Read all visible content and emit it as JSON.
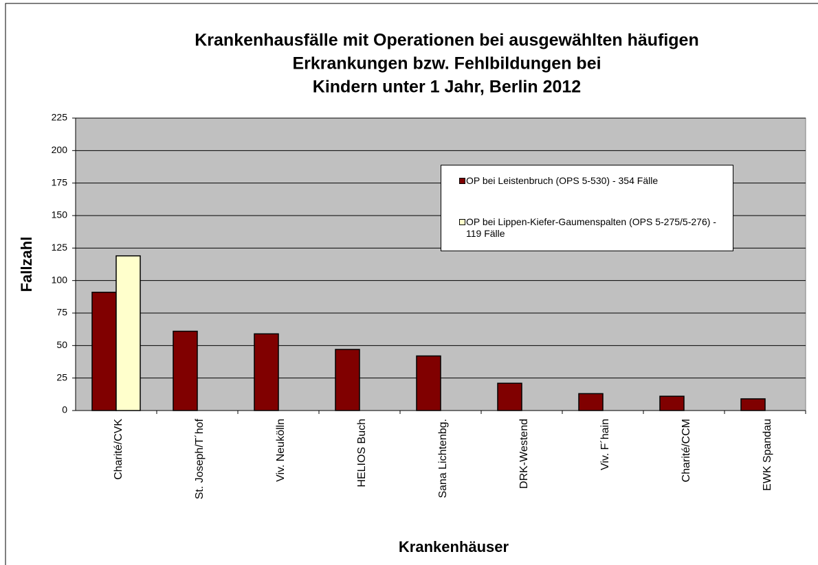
{
  "chart_data": {
    "type": "bar",
    "title": [
      "Krankenhausfälle  mit Operationen bei ausgewählten häufigen",
      "Erkrankungen bzw. Fehlbildungen  bei",
      "Kindern unter 1 Jahr, Berlin 2012"
    ],
    "x_label": "Krankenhäuser",
    "y_label": "Fallzahl",
    "categories": [
      "Charité/CVK",
      "St. Joseph/T´hof",
      "Viv. Neukölln",
      "HELIOS Buch",
      "Sana Lichtenbg.",
      "DRK-Westend",
      "Viv. F´hain",
      "Charité/CCM",
      "EWK Spandau"
    ],
    "series": [
      {
        "name": "OP bei Leistenbruch (OPS 5-530) - 354 Fälle",
        "color": "#800000",
        "values": [
          91,
          61,
          59,
          47,
          42,
          21,
          13,
          11,
          9
        ]
      },
      {
        "name": "OP bei Lippen-Kiefer-Gaumenspalten (OPS 5-275/5-276) - 119 Fälle",
        "color": "#ffffcc",
        "values": [
          119,
          null,
          null,
          null,
          null,
          null,
          null,
          null,
          null
        ]
      }
    ],
    "ylim": [
      0,
      225
    ],
    "yticks": [
      0,
      25,
      50,
      75,
      100,
      125,
      150,
      175,
      200,
      225
    ],
    "grid": true,
    "legend": "upper right"
  }
}
